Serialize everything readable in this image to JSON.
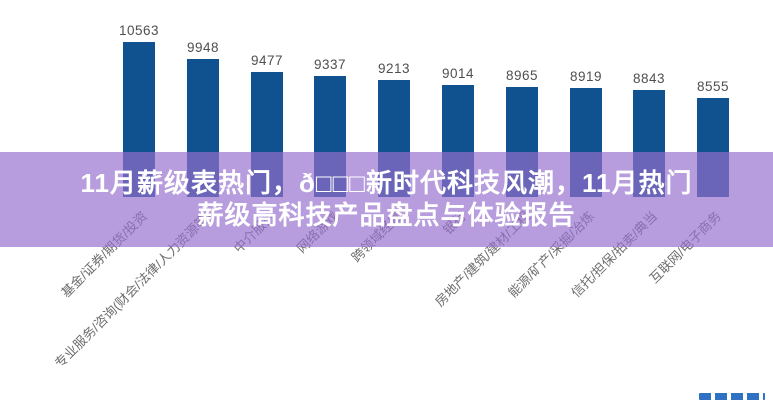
{
  "page": {
    "background": "#FFFFFF"
  },
  "chart_data": {
    "type": "bar",
    "title": "",
    "xlabel": "",
    "ylabel": "",
    "categories": [
      "基金/证券/期货/投资",
      "专业服务/咨询(财会/法律/人力资源等)",
      "中介服务",
      "网络游戏",
      "跨领域经营",
      "银行",
      "房地产/建筑/建材/工程",
      "能源/矿产/采掘/冶炼",
      "信托/担保/拍卖/典当",
      "互联网/电子商务"
    ],
    "values": [
      10563,
      9948,
      9477,
      9337,
      9213,
      9014,
      8965,
      8919,
      8843,
      8555
    ],
    "value_labels": [
      "10563",
      "9948",
      "9477",
      "9337",
      "9213",
      "9014",
      "8965",
      "8919",
      "8843",
      "8555"
    ],
    "ylim": [
      5000,
      11000
    ],
    "grid": false,
    "legend": false,
    "bar_color": "#10518F",
    "value_label_color": "#4F4F4F",
    "axis_label_color": "#6E6E6E"
  },
  "overlay": {
    "title_line1": "11月薪级表热门，ð□□□新时代科技风潮，11月热门",
    "title_line2": "薪级高科技产品盘点与体验报告",
    "band_color": "#956FCD",
    "band_opacity": 0.68,
    "text_color": "#FFFFFF"
  },
  "watermark": {
    "color": "#2F72C4"
  }
}
